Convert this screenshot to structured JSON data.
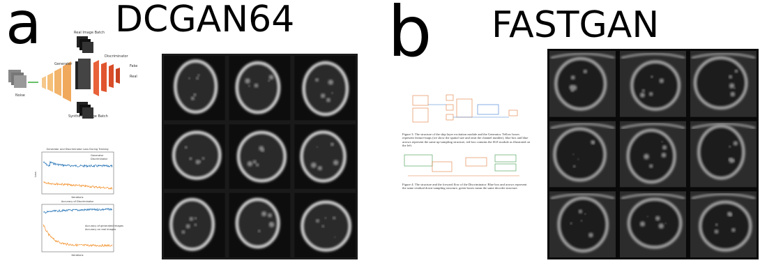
{
  "panel_a": {
    "label": "a",
    "title": "DCGAN64",
    "diagram": {
      "real_batch": "Real Image Batch",
      "generator": "Generator",
      "discriminator": "Discriminator",
      "noise": "Noise",
      "synthetic_batch": "Synthetic Image Batch",
      "fake": "Fake",
      "real": "Real"
    },
    "loss_chart": {
      "title": "Generator and Discriminator Loss During Training",
      "legend": [
        "Generator",
        "Discriminator"
      ],
      "x_label": "Iterations",
      "y_label": "Loss"
    },
    "accuracy_chart": {
      "title": "Accuracy of Discriminator",
      "legend": [
        "Accuracy of generated images",
        "Accuracy on real images"
      ],
      "x_label": "Iterations"
    }
  },
  "panel_b": {
    "label": "b",
    "title": "FASTGAN",
    "captions": [
      "Figure 3: The structure of the skip layer excitation module and the Generator. Yellow boxes represent feature-maps (we show the spatial size and omit the channel number), blue box and blue arrows represent the same up-sampling structure, red box contains the SLE module as illustrated on the left.",
      "Figure 4: The structure and the forward flow of the Discriminator. Blue box and arrows represent the same residual down-sampling structure, green boxes mean the same decoder structure."
    ]
  }
}
